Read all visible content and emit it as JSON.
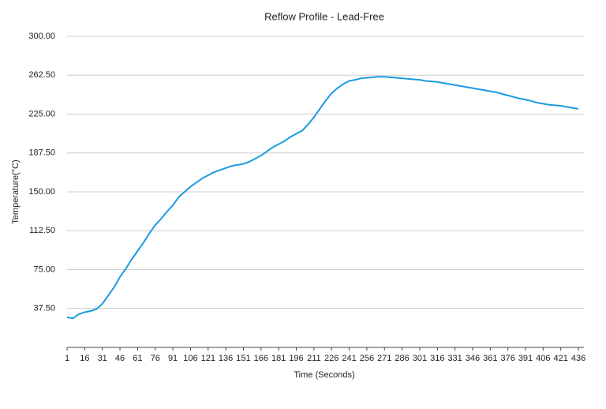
{
  "chart_data": {
    "type": "line",
    "title": "Reflow Profile - Lead-Free",
    "x_label": "Time (Seconds)",
    "y_label": "Temperature(°C)",
    "x": [
      1,
      6,
      11,
      16,
      21,
      26,
      31,
      36,
      41,
      46,
      51,
      56,
      61,
      66,
      71,
      76,
      81,
      86,
      91,
      96,
      101,
      106,
      111,
      116,
      121,
      126,
      131,
      136,
      141,
      146,
      151,
      156,
      161,
      166,
      171,
      176,
      181,
      186,
      191,
      196,
      201,
      206,
      211,
      216,
      221,
      226,
      231,
      236,
      241,
      246,
      251,
      256,
      261,
      266,
      271,
      276,
      281,
      286,
      291,
      296,
      301,
      306,
      311,
      316,
      321,
      326,
      331,
      336,
      341,
      346,
      351,
      356,
      361,
      366,
      371,
      376,
      381,
      386,
      391,
      396,
      401,
      406,
      411,
      416,
      421,
      426,
      431,
      436
    ],
    "series": [
      {
        "name": "Temperature",
        "color": "#1a9be0",
        "values": [
          29,
          28,
          32,
          34,
          35,
          37,
          42,
          50,
          58,
          68,
          76,
          85,
          93,
          101,
          110,
          118,
          124,
          131,
          137,
          145,
          150,
          155,
          159,
          163,
          166,
          169,
          171,
          173,
          175,
          176,
          177,
          179,
          182,
          185,
          189,
          193,
          196,
          199,
          203,
          206,
          209,
          215,
          222,
          230,
          238,
          245,
          250,
          254,
          257,
          258,
          259.5,
          260,
          260.5,
          261,
          261,
          260.5,
          260,
          259.5,
          259,
          258.5,
          258,
          257,
          256.5,
          256,
          255,
          254,
          253,
          252,
          251,
          250,
          249,
          248,
          247,
          246,
          244.5,
          243,
          241.5,
          240,
          239,
          237.5,
          236,
          235,
          234,
          233.5,
          233,
          232,
          231,
          230
        ]
      }
    ],
    "xlim": [
      1,
      440
    ],
    "xticks": [
      1,
      16,
      31,
      46,
      61,
      76,
      91,
      106,
      121,
      136,
      151,
      166,
      181,
      196,
      211,
      226,
      241,
      256,
      271,
      286,
      301,
      316,
      331,
      346,
      361,
      376,
      391,
      406,
      421,
      436
    ],
    "ylim": [
      0,
      300
    ],
    "yticks": [
      {
        "value": 37.5,
        "label": "37.50"
      },
      {
        "value": 75,
        "label": "75.00"
      },
      {
        "value": 112.5,
        "label": "112.50"
      },
      {
        "value": 150,
        "label": "150.00"
      },
      {
        "value": 187.5,
        "label": "187.50"
      },
      {
        "value": 225,
        "label": "225.00"
      },
      {
        "value": 262.5,
        "label": "262.50"
      },
      {
        "value": 300,
        "label": "300.00"
      }
    ],
    "grid": true
  }
}
